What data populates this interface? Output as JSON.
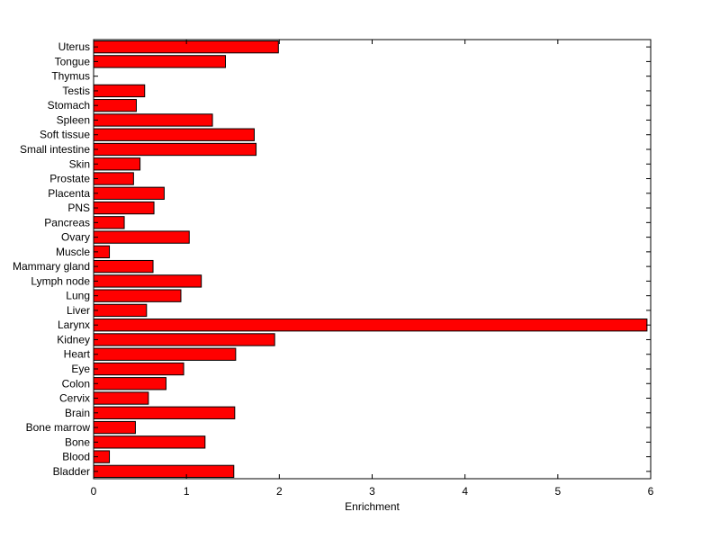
{
  "chart_data": {
    "type": "bar",
    "orientation": "horizontal",
    "xlabel": "Enrichment",
    "ylabel": "",
    "title": "",
    "xlim": [
      0,
      6
    ],
    "xticks": [
      0,
      1,
      2,
      3,
      4,
      5,
      6
    ],
    "grid": false,
    "bar_color": "#ff0000",
    "bar_edge_color": "#000000",
    "categories": [
      "Uterus",
      "Tongue",
      "Thymus",
      "Testis",
      "Stomach",
      "Spleen",
      "Soft tissue",
      "Small intestine",
      "Skin",
      "Prostate",
      "Placenta",
      "PNS",
      "Pancreas",
      "Ovary",
      "Muscle",
      "Mammary gland",
      "Lymph node",
      "Lung",
      "Liver",
      "Larynx",
      "Kidney",
      "Heart",
      "Eye",
      "Colon",
      "Cervix",
      "Brain",
      "Bone marrow",
      "Bone",
      "Blood",
      "Bladder"
    ],
    "values": [
      1.99,
      1.42,
      0.0,
      0.55,
      0.46,
      1.28,
      1.73,
      1.75,
      0.5,
      0.43,
      0.76,
      0.65,
      0.33,
      1.03,
      0.17,
      0.64,
      1.16,
      0.94,
      0.57,
      5.96,
      1.95,
      1.53,
      0.97,
      0.78,
      0.59,
      1.52,
      0.45,
      1.2,
      0.17,
      1.51
    ]
  }
}
